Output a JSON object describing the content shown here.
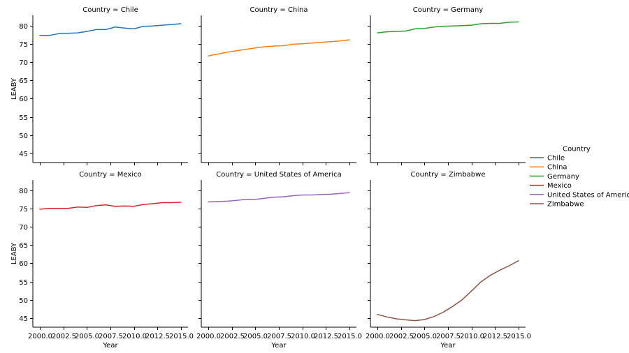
{
  "chart_data": {
    "type": "line",
    "layout": "facet-grid",
    "rows": 2,
    "cols": 3,
    "xlabel": "Year",
    "ylabel": "LEABY",
    "xlim": [
      1999.25,
      2015.75
    ],
    "ylim": [
      42.5,
      82.8
    ],
    "x_ticks": [
      2000.0,
      2002.5,
      2005.0,
      2007.5,
      2010.0,
      2012.5,
      2015.0
    ],
    "x_tick_labels": [
      "2000.0",
      "2002.5",
      "2005.0",
      "2007.5",
      "2010.0",
      "2012.5",
      "2015.0"
    ],
    "y_ticks": [
      45,
      50,
      55,
      60,
      65,
      70,
      75,
      80
    ],
    "y_tick_labels": [
      "45",
      "50",
      "55",
      "60",
      "65",
      "70",
      "75",
      "80"
    ],
    "x": [
      2000,
      2001,
      2002,
      2003,
      2004,
      2005,
      2006,
      2007,
      2008,
      2009,
      2010,
      2011,
      2012,
      2013,
      2014,
      2015
    ],
    "legend": {
      "title": "Country",
      "placement": "right"
    },
    "series": [
      {
        "name": "Chile",
        "panel_title": "Country = Chile",
        "color": "#1f77b4",
        "values": [
          77.3,
          77.3,
          77.8,
          77.9,
          78.0,
          78.4,
          78.9,
          78.9,
          79.6,
          79.3,
          79.1,
          79.8,
          79.9,
          80.1,
          80.3,
          80.5
        ]
      },
      {
        "name": "China",
        "panel_title": "Country = China",
        "color": "#ff7f0e",
        "values": [
          71.7,
          72.2,
          72.7,
          73.1,
          73.5,
          73.9,
          74.2,
          74.4,
          74.5,
          74.9,
          75.0,
          75.2,
          75.4,
          75.6,
          75.8,
          76.1
        ]
      },
      {
        "name": "Germany",
        "panel_title": "Country = Germany",
        "color": "#2ca02c",
        "values": [
          78.0,
          78.3,
          78.4,
          78.5,
          79.1,
          79.2,
          79.6,
          79.8,
          79.9,
          80.0,
          80.1,
          80.5,
          80.6,
          80.6,
          80.9,
          81.0
        ]
      },
      {
        "name": "Mexico",
        "panel_title": "Country = Mexico",
        "color": "#d62728",
        "values": [
          74.8,
          75.0,
          75.0,
          75.0,
          75.4,
          75.3,
          75.8,
          76.0,
          75.6,
          75.7,
          75.6,
          76.1,
          76.3,
          76.6,
          76.6,
          76.7
        ]
      },
      {
        "name": "United States of America",
        "panel_title": "Country = United States of America",
        "color": "#9467bd",
        "values": [
          76.8,
          76.9,
          77.0,
          77.2,
          77.5,
          77.5,
          77.8,
          78.1,
          78.2,
          78.5,
          78.7,
          78.7,
          78.8,
          78.9,
          79.1,
          79.3
        ]
      },
      {
        "name": "Zimbabwe",
        "panel_title": "Country = Zimbabwe",
        "color": "#8c564b",
        "values": [
          46.0,
          45.3,
          44.8,
          44.5,
          44.3,
          44.6,
          45.4,
          46.6,
          48.2,
          50.0,
          52.4,
          54.9,
          56.7,
          58.1,
          59.3,
          60.7
        ]
      }
    ]
  }
}
